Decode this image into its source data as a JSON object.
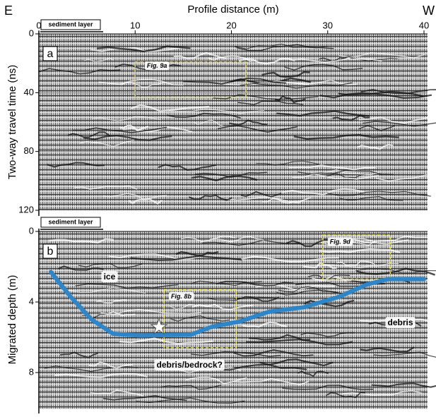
{
  "chart_data": [
    {
      "type": "radargram",
      "title": "Profile distance (m)",
      "panel_label": "a",
      "left_label": "E",
      "right_label": "W",
      "layer_label": "sediment layer",
      "y_label": "Two-way travel time (ns)",
      "xlim": [
        0,
        40
      ],
      "xticks": [
        0,
        10,
        20,
        30,
        40
      ],
      "ylim": [
        0,
        120
      ],
      "yticks": [
        0,
        40,
        80,
        120
      ],
      "annotations": [
        "Fig. 9a"
      ]
    },
    {
      "type": "line",
      "panel_label": "b",
      "layer_label": "sediment layer",
      "y_label": "Migrated depth (m)",
      "xlim": [
        0,
        40
      ],
      "ylim": [
        0,
        10
      ],
      "yticks": [
        0,
        4,
        8
      ],
      "x": [
        1.25,
        3.3,
        5.5,
        7.7,
        10.6,
        15.8,
        18,
        20.9,
        23.9,
        27.5,
        31.2,
        34.1,
        36.3,
        40
      ],
      "series": [
        {
          "color": "#2e86c8",
          "values": [
            2.3,
            3.7,
            5.0,
            5.8,
            5.9,
            5.85,
            5.4,
            5.1,
            4.55,
            4.3,
            3.7,
            3.0,
            2.7,
            2.7
          ]
        }
      ],
      "annotations": [
        "Fig. 8b",
        "Fig. 9d",
        "ice",
        "debris",
        "debris/bedrock?"
      ]
    }
  ]
}
